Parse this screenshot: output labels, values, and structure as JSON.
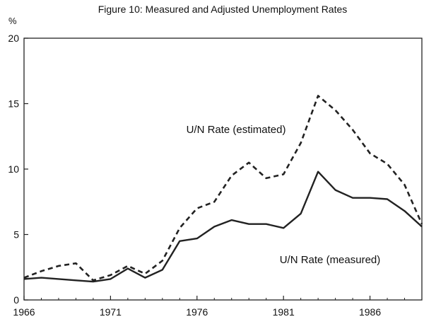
{
  "chart_data": {
    "type": "line",
    "title": "Figure 10: Measured and Adjusted Unemployment Rates",
    "ylabel": "%",
    "xlabel": "",
    "xlim": [
      1966,
      1989
    ],
    "ylim": [
      0,
      20
    ],
    "x_ticks": [
      1966,
      1971,
      1976,
      1981,
      1986
    ],
    "x_tick_labels": [
      "1966",
      "1971",
      "1976",
      "1981",
      "1986"
    ],
    "y_ticks": [
      0,
      5,
      10,
      15,
      20
    ],
    "y_tick_labels": [
      "0",
      "5",
      "10",
      "15",
      "20"
    ],
    "grid": false,
    "x": [
      1966,
      1967,
      1968,
      1969,
      1970,
      1971,
      1972,
      1973,
      1974,
      1975,
      1976,
      1977,
      1978,
      1979,
      1980,
      1981,
      1982,
      1983,
      1984,
      1985,
      1986,
      1987,
      1988,
      1989
    ],
    "series": [
      {
        "name": "U/N Rate (estimated)",
        "style": "dashed",
        "color": "#222222",
        "values": [
          1.7,
          2.2,
          2.6,
          2.8,
          1.5,
          1.9,
          2.6,
          2.0,
          3.0,
          5.5,
          7.0,
          7.5,
          9.5,
          10.5,
          9.3,
          9.6,
          12.0,
          15.6,
          14.5,
          13.0,
          11.2,
          10.4,
          8.8,
          5.8
        ]
      },
      {
        "name": "U/N Rate (measured)",
        "style": "solid",
        "color": "#222222",
        "values": [
          1.6,
          1.7,
          1.6,
          1.5,
          1.4,
          1.6,
          2.4,
          1.7,
          2.3,
          4.5,
          4.7,
          5.6,
          6.1,
          5.8,
          5.8,
          5.5,
          6.6,
          9.8,
          8.4,
          7.8,
          7.8,
          7.7,
          6.8,
          5.6
        ]
      }
    ],
    "annotations": [
      {
        "text": "U/N Rate (estimated)",
        "series": "U/N Rate (estimated)"
      },
      {
        "text": "U/N Rate (measured)",
        "series": "U/N Rate (measured)"
      }
    ]
  }
}
